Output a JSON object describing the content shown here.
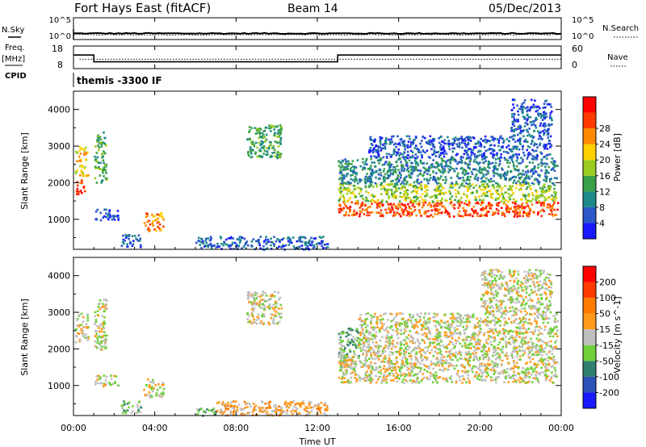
{
  "header": {
    "station": "Fort Hays East (fitACF)",
    "beam": "Beam 14",
    "date": "05/Dec/2013"
  },
  "left_labels": {
    "nsky": "N.Sky",
    "freq_line1": "Freq.",
    "freq_line2": "[MHz]",
    "cpid": "CPID"
  },
  "right_labels": {
    "nsearch": "N.Search",
    "nave": "Nave"
  },
  "noise_panel": {
    "left_ticks": [
      "10^5",
      "10^0"
    ],
    "right_ticks": [
      "10^5",
      "10^0"
    ]
  },
  "freq_panel": {
    "left_ticks": [
      "18",
      "8"
    ],
    "right_ticks": [
      "60",
      "0"
    ]
  },
  "cpid_panel": {
    "text": "themis -3300 IF"
  },
  "time_axis": {
    "label": "Time UT",
    "ticks": [
      "00:00",
      "04:00",
      "08:00",
      "12:00",
      "16:00",
      "20:00",
      "00:00"
    ]
  },
  "power_panel": {
    "ylabel": "Slant Range [km]",
    "y_ticks": [
      "1000",
      "2000",
      "3000",
      "4000"
    ],
    "colorbar_label": "Power [dB]",
    "colorbar_ticks": [
      "4",
      "8",
      "12",
      "16",
      "20",
      "24",
      "28"
    ]
  },
  "velocity_panel": {
    "ylabel": "Slant Range [km]",
    "y_ticks": [
      "1000",
      "2000",
      "3000",
      "4000"
    ],
    "colorbar_label": "Velocity [m s^-1]",
    "colorbar_ticks": [
      "-200",
      "-100",
      "-50",
      "-15",
      "15",
      "50",
      "100",
      "200"
    ]
  },
  "chart_data": {
    "type": "heatmap",
    "title": "Fort Hays East (fitACF)",
    "x_unit": "hours UT",
    "x_range": [
      0,
      24
    ],
    "y_range": [
      180,
      4500
    ],
    "power_colors": [
      "#1a1aff",
      "#2b58c8",
      "#1f8a8a",
      "#3aa04a",
      "#9bcc1f",
      "#ffd000",
      "#ff8a00",
      "#ff3a00",
      "#ff0000"
    ],
    "velocity_colors": [
      "#1a1aff",
      "#2a52b8",
      "#2f7f6e",
      "#6fd03a",
      "#bfbfbf",
      "#ff9a1a",
      "#ff7a00",
      "#ff3a00",
      "#ff0000"
    ],
    "frequency": {
      "segments": [
        {
          "t0": 0.0,
          "t1": 1.0,
          "value": 14
        },
        {
          "t0": 1.0,
          "t1": 13.0,
          "value": 11
        },
        {
          "t0": 13.0,
          "t1": 24.0,
          "value": 14
        }
      ],
      "nave": 25
    },
    "noise": {
      "nsky_log": 1.4,
      "nsearch_log": 1.1
    },
    "power_regions": [
      {
        "t0": 0.05,
        "t1": 0.7,
        "r0": 2200,
        "r1": 3000,
        "level": 5
      },
      {
        "t0": 0.1,
        "t1": 0.55,
        "r0": 1700,
        "r1": 2100,
        "level": 7
      },
      {
        "t0": 1.0,
        "t1": 1.6,
        "r0": 2000,
        "r1": 3400,
        "level": 3
      },
      {
        "t0": 1.0,
        "t1": 2.2,
        "r0": 1000,
        "r1": 1300,
        "level": 1
      },
      {
        "t0": 2.3,
        "t1": 3.3,
        "r0": 250,
        "r1": 600,
        "level": 1
      },
      {
        "t0": 3.4,
        "t1": 4.4,
        "r0": 700,
        "r1": 1200,
        "level": 6
      },
      {
        "t0": 6.0,
        "t1": 12.5,
        "r0": 200,
        "r1": 550,
        "level": 1
      },
      {
        "t0": 8.5,
        "t1": 10.2,
        "r0": 2700,
        "r1": 3600,
        "level": 3
      },
      {
        "t0": 13.0,
        "t1": 23.8,
        "r0": 1100,
        "r1": 1500,
        "level": 7
      },
      {
        "t0": 13.0,
        "t1": 23.8,
        "r0": 1500,
        "r1": 2000,
        "level": 4
      },
      {
        "t0": 13.0,
        "t1": 23.8,
        "r0": 2000,
        "r1": 2700,
        "level": 2
      },
      {
        "t0": 14.5,
        "t1": 23.5,
        "r0": 2700,
        "r1": 3300,
        "level": 1
      },
      {
        "t0": 21.5,
        "t1": 23.5,
        "r0": 3300,
        "r1": 4300,
        "level": 1
      }
    ],
    "velocity_regions": [
      {
        "t0": 0.05,
        "t1": 0.7,
        "r0": 2200,
        "r1": 3000,
        "level": 4
      },
      {
        "t0": 1.0,
        "t1": 1.6,
        "r0": 2000,
        "r1": 3400,
        "level": 4
      },
      {
        "t0": 1.0,
        "t1": 2.2,
        "r0": 1000,
        "r1": 1300,
        "level": 4
      },
      {
        "t0": 2.3,
        "t1": 3.3,
        "r0": 250,
        "r1": 600,
        "level": 3
      },
      {
        "t0": 3.4,
        "t1": 4.4,
        "r0": 700,
        "r1": 1200,
        "level": 4
      },
      {
        "t0": 6.0,
        "t1": 7.0,
        "r0": 200,
        "r1": 400,
        "level": 3
      },
      {
        "t0": 7.0,
        "t1": 12.5,
        "r0": 200,
        "r1": 600,
        "level": 5
      },
      {
        "t0": 8.5,
        "t1": 10.2,
        "r0": 2700,
        "r1": 3600,
        "level": 4
      },
      {
        "t0": 13.0,
        "t1": 14.0,
        "r0": 1500,
        "r1": 2600,
        "level": 3
      },
      {
        "t0": 13.0,
        "t1": 23.8,
        "r0": 1100,
        "r1": 1900,
        "level": 4
      },
      {
        "t0": 14.0,
        "t1": 23.8,
        "r0": 1900,
        "r1": 3000,
        "level": 4
      },
      {
        "t0": 20.0,
        "t1": 23.5,
        "r0": 3000,
        "r1": 4200,
        "level": 4
      }
    ]
  }
}
